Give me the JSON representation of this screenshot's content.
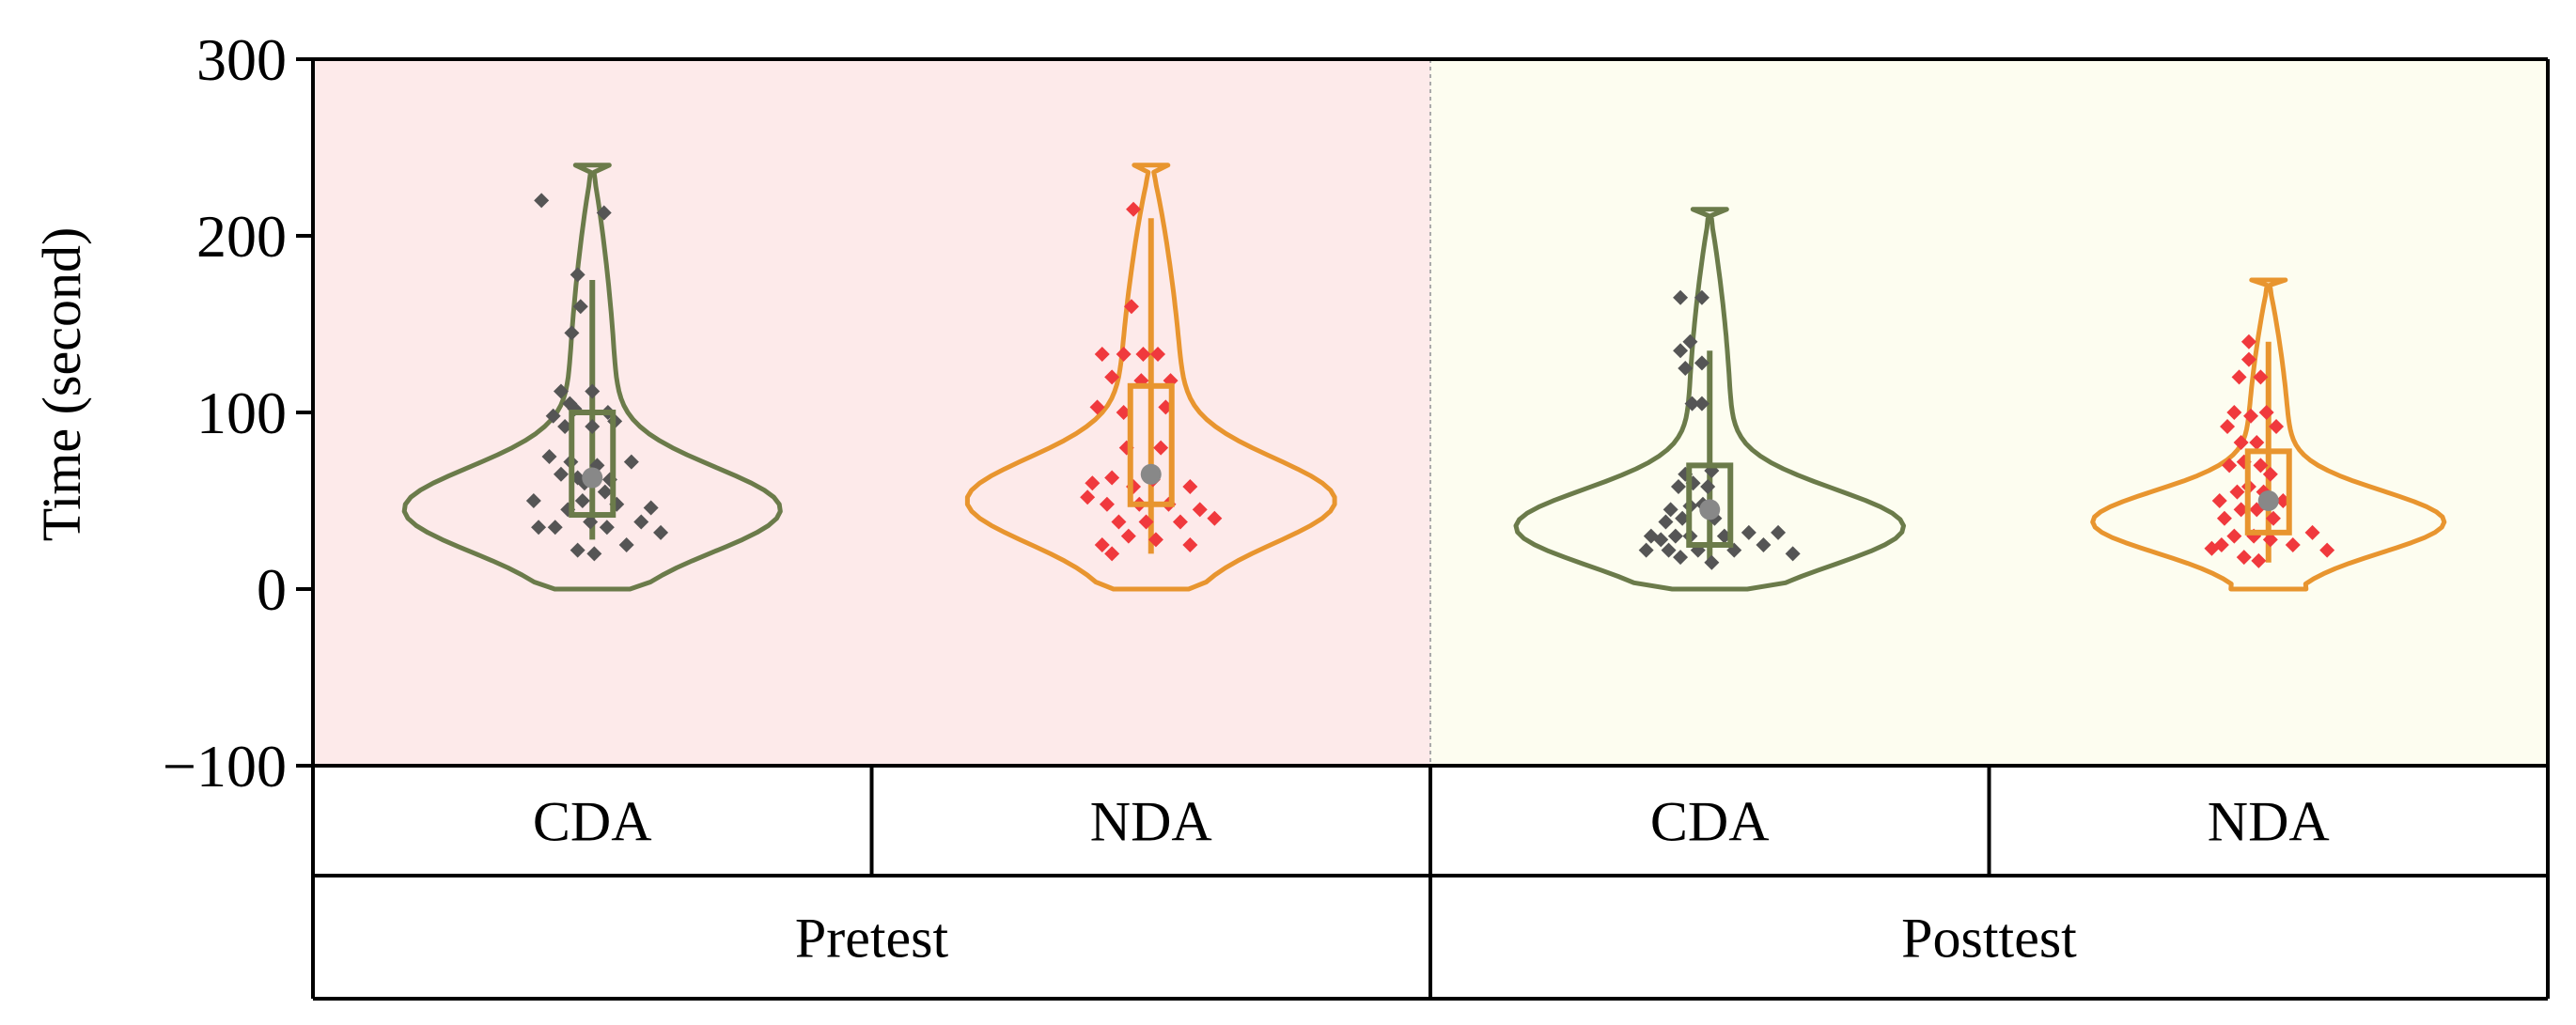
{
  "chart_data": {
    "type": "violin",
    "ylabel": "Time (second)",
    "ylim": [
      -100,
      300
    ],
    "yticks": [
      300,
      200,
      100,
      0,
      -100
    ],
    "ytick_labels": [
      "300",
      "200",
      "100",
      "0",
      "−100"
    ],
    "colors": {
      "cda": "#6b7b4a",
      "nda": "#e8952f",
      "cda_points": "#555555",
      "nda_points": "#f0393d",
      "mean_marker": "#888888",
      "pretest_bg": "#fdeaea",
      "posttest_bg": "#fdfdf0"
    },
    "groups": [
      {
        "label": "Pretest",
        "series": [
          {
            "label": "CDA",
            "color_key": "cda",
            "point_color_key": "cda_points",
            "violin_range": [
              0,
              240
            ],
            "box": {
              "q1": 42,
              "median": 62,
              "q3": 100,
              "whisker_low": 28,
              "whisker_high": 175
            },
            "mean": 63,
            "points": [
              {
                "x": 0.18,
                "y": 220
              },
              {
                "x": 0.82,
                "y": 213
              },
              {
                "x": 0.55,
                "y": 178
              },
              {
                "x": 0.58,
                "y": 160
              },
              {
                "x": 0.49,
                "y": 145
              },
              {
                "x": 0.38,
                "y": 112
              },
              {
                "x": 0.7,
                "y": 112
              },
              {
                "x": 0.47,
                "y": 105
              },
              {
                "x": 0.52,
                "y": 102
              },
              {
                "x": 0.3,
                "y": 98
              },
              {
                "x": 0.86,
                "y": 100
              },
              {
                "x": 0.42,
                "y": 92
              },
              {
                "x": 0.7,
                "y": 92
              },
              {
                "x": 0.93,
                "y": 95
              },
              {
                "x": 0.26,
                "y": 75
              },
              {
                "x": 0.48,
                "y": 72
              },
              {
                "x": 0.75,
                "y": 70
              },
              {
                "x": 1.1,
                "y": 72
              },
              {
                "x": 0.38,
                "y": 65
              },
              {
                "x": 0.55,
                "y": 63
              },
              {
                "x": 0.88,
                "y": 62
              },
              {
                "x": 0.62,
                "y": 60
              },
              {
                "x": 0.1,
                "y": 50
              },
              {
                "x": 0.45,
                "y": 45
              },
              {
                "x": 0.6,
                "y": 50
              },
              {
                "x": 0.83,
                "y": 55
              },
              {
                "x": 0.95,
                "y": 48
              },
              {
                "x": 1.3,
                "y": 46
              },
              {
                "x": 0.15,
                "y": 35
              },
              {
                "x": 0.32,
                "y": 35
              },
              {
                "x": 0.68,
                "y": 38
              },
              {
                "x": 0.85,
                "y": 35
              },
              {
                "x": 1.2,
                "y": 38
              },
              {
                "x": 1.05,
                "y": 25
              },
              {
                "x": 0.55,
                "y": 22
              },
              {
                "x": 0.72,
                "y": 20
              },
              {
                "x": 1.4,
                "y": 32
              }
            ]
          },
          {
            "label": "NDA",
            "color_key": "nda",
            "point_color_key": "nda_points",
            "violin_range": [
              0,
              240
            ],
            "box": {
              "q1": 48,
              "median": 65,
              "q3": 115,
              "whisker_low": 20,
              "whisker_high": 210
            },
            "mean": 65,
            "points": [
              {
                "x": 0.52,
                "y": 215
              },
              {
                "x": 0.5,
                "y": 160
              },
              {
                "x": 0.2,
                "y": 133
              },
              {
                "x": 0.42,
                "y": 133
              },
              {
                "x": 0.62,
                "y": 133
              },
              {
                "x": 0.77,
                "y": 133
              },
              {
                "x": 0.3,
                "y": 120
              },
              {
                "x": 0.6,
                "y": 118
              },
              {
                "x": 0.9,
                "y": 118
              },
              {
                "x": 0.15,
                "y": 103
              },
              {
                "x": 0.42,
                "y": 100
              },
              {
                "x": 0.85,
                "y": 103
              },
              {
                "x": 0.45,
                "y": 80
              },
              {
                "x": 0.8,
                "y": 80
              },
              {
                "x": 0.1,
                "y": 60
              },
              {
                "x": 0.3,
                "y": 63
              },
              {
                "x": 0.52,
                "y": 58
              },
              {
                "x": 0.72,
                "y": 62
              },
              {
                "x": 1.1,
                "y": 58
              },
              {
                "x": 0.05,
                "y": 52
              },
              {
                "x": 0.25,
                "y": 48
              },
              {
                "x": 0.58,
                "y": 48
              },
              {
                "x": 0.88,
                "y": 48
              },
              {
                "x": 1.2,
                "y": 45
              },
              {
                "x": 0.37,
                "y": 38
              },
              {
                "x": 0.65,
                "y": 38
              },
              {
                "x": 1.0,
                "y": 38
              },
              {
                "x": 1.35,
                "y": 40
              },
              {
                "x": 0.2,
                "y": 25
              },
              {
                "x": 0.47,
                "y": 30
              },
              {
                "x": 0.75,
                "y": 28
              },
              {
                "x": 0.3,
                "y": 20
              },
              {
                "x": 1.1,
                "y": 25
              }
            ]
          }
        ]
      },
      {
        "label": "Posttest",
        "series": [
          {
            "label": "CDA",
            "color_key": "cda",
            "point_color_key": "cda_points",
            "violin_range": [
              0,
              215
            ],
            "box": {
              "q1": 25,
              "median": 45,
              "q3": 70,
              "whisker_low": 15,
              "whisker_high": 135
            },
            "mean": 45,
            "points": [
              {
                "x": 0.4,
                "y": 165
              },
              {
                "x": 0.62,
                "y": 165
              },
              {
                "x": 0.5,
                "y": 140
              },
              {
                "x": 0.4,
                "y": 135
              },
              {
                "x": 0.62,
                "y": 128
              },
              {
                "x": 0.45,
                "y": 125
              },
              {
                "x": 0.52,
                "y": 105
              },
              {
                "x": 0.62,
                "y": 105
              },
              {
                "x": 0.45,
                "y": 65
              },
              {
                "x": 0.72,
                "y": 67
              },
              {
                "x": 0.38,
                "y": 58
              },
              {
                "x": 0.53,
                "y": 60
              },
              {
                "x": 0.68,
                "y": 58
              },
              {
                "x": 0.3,
                "y": 45
              },
              {
                "x": 0.5,
                "y": 47
              },
              {
                "x": 0.63,
                "y": 48
              },
              {
                "x": 0.25,
                "y": 38
              },
              {
                "x": 0.42,
                "y": 40
              },
              {
                "x": 0.75,
                "y": 40
              },
              {
                "x": 0.1,
                "y": 30
              },
              {
                "x": 0.2,
                "y": 28
              },
              {
                "x": 0.35,
                "y": 30
              },
              {
                "x": 0.5,
                "y": 30
              },
              {
                "x": 0.85,
                "y": 30
              },
              {
                "x": 1.1,
                "y": 32
              },
              {
                "x": 1.4,
                "y": 32
              },
              {
                "x": 0.05,
                "y": 22
              },
              {
                "x": 0.28,
                "y": 22
              },
              {
                "x": 0.58,
                "y": 22
              },
              {
                "x": 0.95,
                "y": 22
              },
              {
                "x": 1.25,
                "y": 25
              },
              {
                "x": 1.55,
                "y": 20
              },
              {
                "x": 0.4,
                "y": 18
              },
              {
                "x": 0.72,
                "y": 15
              }
            ]
          },
          {
            "label": "NDA",
            "color_key": "nda",
            "point_color_key": "nda_points",
            "violin_range": [
              0,
              175
            ],
            "box": {
              "q1": 32,
              "median": 50,
              "q3": 78,
              "whisker_low": 15,
              "whisker_high": 140
            },
            "mean": 50,
            "points": [
              {
                "x": 0.5,
                "y": 140
              },
              {
                "x": 0.5,
                "y": 130
              },
              {
                "x": 0.4,
                "y": 120
              },
              {
                "x": 0.62,
                "y": 120
              },
              {
                "x": 0.35,
                "y": 100
              },
              {
                "x": 0.52,
                "y": 98
              },
              {
                "x": 0.68,
                "y": 100
              },
              {
                "x": 0.28,
                "y": 92
              },
              {
                "x": 0.78,
                "y": 92
              },
              {
                "x": 0.42,
                "y": 83
              },
              {
                "x": 0.58,
                "y": 83
              },
              {
                "x": 0.3,
                "y": 70
              },
              {
                "x": 0.45,
                "y": 72
              },
              {
                "x": 0.62,
                "y": 70
              },
              {
                "x": 0.72,
                "y": 65
              },
              {
                "x": 0.2,
                "y": 50
              },
              {
                "x": 0.38,
                "y": 55
              },
              {
                "x": 0.5,
                "y": 58
              },
              {
                "x": 0.65,
                "y": 55
              },
              {
                "x": 0.85,
                "y": 50
              },
              {
                "x": 0.25,
                "y": 40
              },
              {
                "x": 0.42,
                "y": 45
              },
              {
                "x": 0.58,
                "y": 45
              },
              {
                "x": 0.75,
                "y": 40
              },
              {
                "x": 0.12,
                "y": 23
              },
              {
                "x": 0.22,
                "y": 25
              },
              {
                "x": 0.35,
                "y": 30
              },
              {
                "x": 0.55,
                "y": 30
              },
              {
                "x": 0.72,
                "y": 28
              },
              {
                "x": 0.95,
                "y": 25
              },
              {
                "x": 1.15,
                "y": 32
              },
              {
                "x": 1.3,
                "y": 22
              },
              {
                "x": 0.45,
                "y": 18
              },
              {
                "x": 0.6,
                "y": 16
              }
            ]
          }
        ]
      }
    ]
  }
}
